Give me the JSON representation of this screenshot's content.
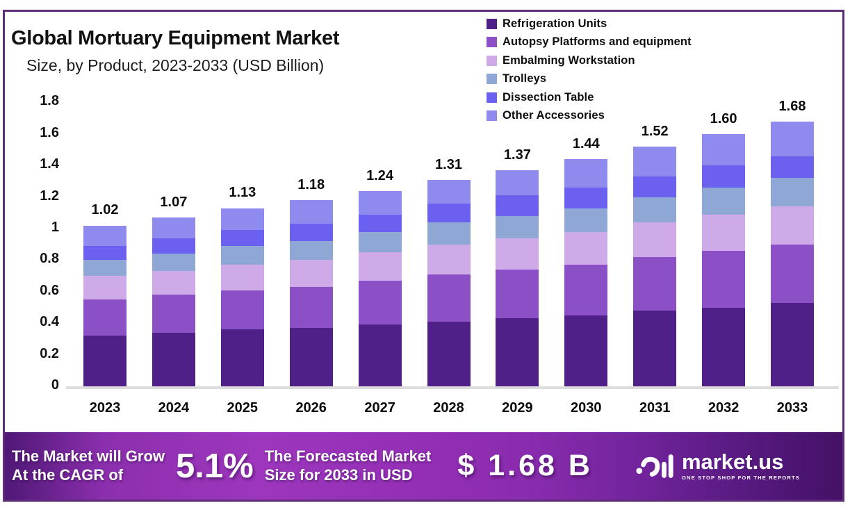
{
  "title": "Global Mortuary Equipment Market",
  "subtitle": "Size, by Product, 2023-2033 (USD Billion)",
  "frame_border_color": "#5e2d79",
  "chart_data": {
    "type": "bar",
    "stacked": true,
    "title": "Global Mortuary Equipment Market Size, by Product, 2023-2033 (USD Billion)",
    "categories": [
      "2023",
      "2024",
      "2025",
      "2026",
      "2027",
      "2028",
      "2029",
      "2030",
      "2031",
      "2032",
      "2033"
    ],
    "totals_display": [
      "1.02",
      "1.07",
      "1.13",
      "1.18",
      "1.24",
      "1.31",
      "1.37",
      "1.44",
      "1.52",
      "1.60",
      "1.68"
    ],
    "series": [
      {
        "name": "Refrigeration Units",
        "color": "#4e2088",
        "values": [
          0.32,
          0.34,
          0.36,
          0.37,
          0.39,
          0.41,
          0.43,
          0.45,
          0.48,
          0.5,
          0.53
        ]
      },
      {
        "name": "Autopsy Platforms and equipment",
        "color": "#8b50c5",
        "values": [
          0.23,
          0.24,
          0.25,
          0.26,
          0.28,
          0.3,
          0.31,
          0.32,
          0.34,
          0.36,
          0.37
        ]
      },
      {
        "name": "Embalming Workstation",
        "color": "#cfaae8",
        "values": [
          0.15,
          0.15,
          0.16,
          0.17,
          0.18,
          0.19,
          0.2,
          0.21,
          0.22,
          0.23,
          0.24
        ]
      },
      {
        "name": "Trolleys",
        "color": "#8fa7d5",
        "values": [
          0.1,
          0.11,
          0.12,
          0.12,
          0.13,
          0.14,
          0.14,
          0.15,
          0.16,
          0.17,
          0.18
        ]
      },
      {
        "name": "Dissection Table",
        "color": "#6c60f0",
        "values": [
          0.09,
          0.1,
          0.1,
          0.11,
          0.11,
          0.12,
          0.13,
          0.13,
          0.13,
          0.14,
          0.14
        ]
      },
      {
        "name": "Other Accessories",
        "color": "#8f8bee",
        "values": [
          0.13,
          0.13,
          0.14,
          0.15,
          0.15,
          0.15,
          0.16,
          0.18,
          0.19,
          0.2,
          0.22
        ]
      }
    ],
    "ylim": [
      0,
      1.8
    ],
    "yticks": [
      "1.8",
      "1.6",
      "1.4",
      "1.2",
      "1",
      "0.8",
      "0.6",
      "0.4",
      "0.2",
      "0"
    ],
    "grid": false,
    "legend_position": "top-right",
    "xlabel": "",
    "ylabel": ""
  },
  "banner": {
    "grow_line1": "The Market will Grow",
    "grow_line2": "At the CAGR of",
    "cagr": "5.1%",
    "forecast_line1": "The Forecasted Market",
    "forecast_line2": "Size for 2033 in USD",
    "forecast_value": "$ 1.68 B",
    "brand": "market.us",
    "tagline": "ONE STOP SHOP FOR THE REPORTS"
  }
}
